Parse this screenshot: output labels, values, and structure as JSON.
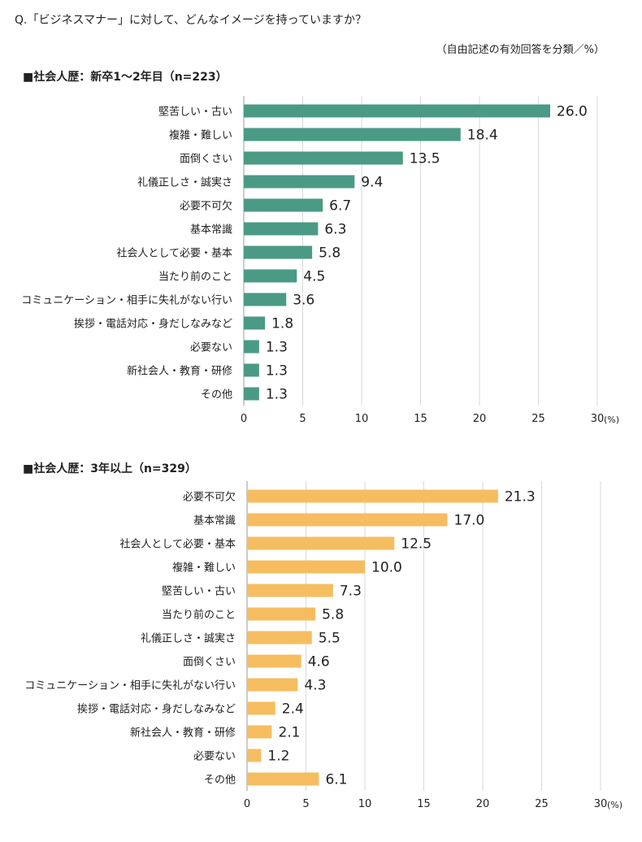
{
  "question": "Q.「ビジネスマナー」に対して、どんなイメージを持っていますか？",
  "note": "（自由記述の有効回答を分類／%）",
  "chart_data": [
    {
      "type": "bar",
      "orientation": "horizontal",
      "title": "■社会人歴：新卒1〜2年目（n=223）",
      "unit": "(%)",
      "xlim": [
        0,
        30
      ],
      "ticks": [
        0,
        5,
        10,
        15,
        20,
        25,
        30
      ],
      "grid": true,
      "color": "#4a9a86",
      "categories": [
        "堅苦しい・古い",
        "複雑・難しい",
        "面倒くさい",
        "礼儀正しさ・誠実さ",
        "必要不可欠",
        "基本常識",
        "社会人として必要・基本",
        "当たり前のこと",
        "コミュニケーション・相手に失礼がない行い",
        "挨拶・電話対応・身だしなみなど",
        "必要ない",
        "新社会人・教育・研修",
        "その他"
      ],
      "values": [
        26.0,
        18.4,
        13.5,
        9.4,
        6.7,
        6.3,
        5.8,
        4.5,
        3.6,
        1.8,
        1.3,
        1.3,
        1.3
      ],
      "labels": [
        "26.0",
        "18.4",
        "13.5",
        "9.4",
        "6.7",
        "6.3",
        "5.8",
        "4.5",
        "3.6",
        "1.8",
        "1.3",
        "1.3",
        "1.3"
      ]
    },
    {
      "type": "bar",
      "orientation": "horizontal",
      "title": "■社会人歴：3年以上（n=329）",
      "unit": "(%)",
      "xlim": [
        0,
        30
      ],
      "ticks": [
        0,
        5,
        10,
        15,
        20,
        25,
        30
      ],
      "grid": true,
      "color": "#f6bd60",
      "categories": [
        "必要不可欠",
        "基本常識",
        "社会人として必要・基本",
        "複雑・難しい",
        "堅苦しい・古い",
        "当たり前のこと",
        "礼儀正しさ・誠実さ",
        "面倒くさい",
        "コミュニケーション・相手に失礼がない行い",
        "挨拶・電話対応・身だしなみなど",
        "新社会人・教育・研修",
        "必要ない",
        "その他"
      ],
      "values": [
        21.3,
        17.0,
        12.5,
        10.0,
        7.3,
        5.8,
        5.5,
        4.6,
        4.3,
        2.4,
        2.1,
        1.2,
        6.1
      ],
      "labels": [
        "21.3",
        "17.0",
        "12.5",
        "10.0",
        "7.3",
        "5.8",
        "5.5",
        "4.6",
        "4.3",
        "2.4",
        "2.1",
        "1.2",
        "6.1"
      ]
    }
  ]
}
